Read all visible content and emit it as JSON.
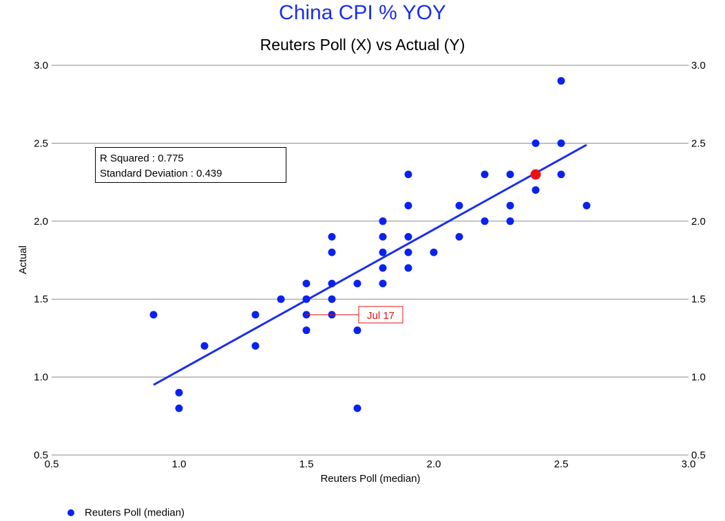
{
  "chart_data": {
    "type": "scatter",
    "title": "China CPI % YOY",
    "subtitle": "Reuters Poll (X) vs Actual (Y)",
    "xlabel": "Reuters Poll (median)",
    "ylabel": "Actual",
    "xlim": [
      0.5,
      3.0
    ],
    "ylim": [
      0.5,
      3.0
    ],
    "x_ticks": [
      "0.5",
      "1.0",
      "1.5",
      "2.0",
      "2.5",
      "3.0"
    ],
    "y_ticks": [
      "0.5",
      "1.0",
      "1.5",
      "2.0",
      "2.5",
      "3.0"
    ],
    "grid": "horizontal",
    "legend_position": "bottom-left",
    "series": [
      {
        "name": "Reuters Poll (median)",
        "color": "#0a22f0",
        "points": [
          [
            0.9,
            1.4
          ],
          [
            1.0,
            0.9
          ],
          [
            1.0,
            0.8
          ],
          [
            1.1,
            1.2
          ],
          [
            1.3,
            1.4
          ],
          [
            1.3,
            1.2
          ],
          [
            1.4,
            1.5
          ],
          [
            1.5,
            1.6
          ],
          [
            1.5,
            1.5
          ],
          [
            1.5,
            1.4
          ],
          [
            1.5,
            1.3
          ],
          [
            1.6,
            1.9
          ],
          [
            1.6,
            1.8
          ],
          [
            1.6,
            1.6
          ],
          [
            1.6,
            1.5
          ],
          [
            1.6,
            1.4
          ],
          [
            1.7,
            1.6
          ],
          [
            1.7,
            1.3
          ],
          [
            1.7,
            0.8
          ],
          [
            1.8,
            2.0
          ],
          [
            1.8,
            1.9
          ],
          [
            1.8,
            1.8
          ],
          [
            1.8,
            1.7
          ],
          [
            1.8,
            1.6
          ],
          [
            1.9,
            2.3
          ],
          [
            1.9,
            2.1
          ],
          [
            1.9,
            1.9
          ],
          [
            1.9,
            1.8
          ],
          [
            1.9,
            1.7
          ],
          [
            2.0,
            1.8
          ],
          [
            2.1,
            2.1
          ],
          [
            2.1,
            1.9
          ],
          [
            2.2,
            2.3
          ],
          [
            2.2,
            2.0
          ],
          [
            2.3,
            2.3
          ],
          [
            2.3,
            2.1
          ],
          [
            2.3,
            2.0
          ],
          [
            2.4,
            2.5
          ],
          [
            2.4,
            2.2
          ],
          [
            2.5,
            2.9
          ],
          [
            2.5,
            2.5
          ],
          [
            2.5,
            2.3
          ],
          [
            2.6,
            2.1
          ]
        ]
      }
    ],
    "highlight_point": {
      "x": 2.4,
      "y": 2.3,
      "color": "#ee1111"
    },
    "regression_line": {
      "from": [
        0.9,
        0.95
      ],
      "to": [
        2.6,
        2.49
      ],
      "color": "#1a2eea"
    },
    "annotation": {
      "label": "Jul 17",
      "x": 1.5,
      "y": 1.4,
      "color": "#ee1111"
    },
    "stats": {
      "r_squared": "R Squared : 0.775",
      "std_dev": "Standard Deviation : 0.439"
    }
  }
}
